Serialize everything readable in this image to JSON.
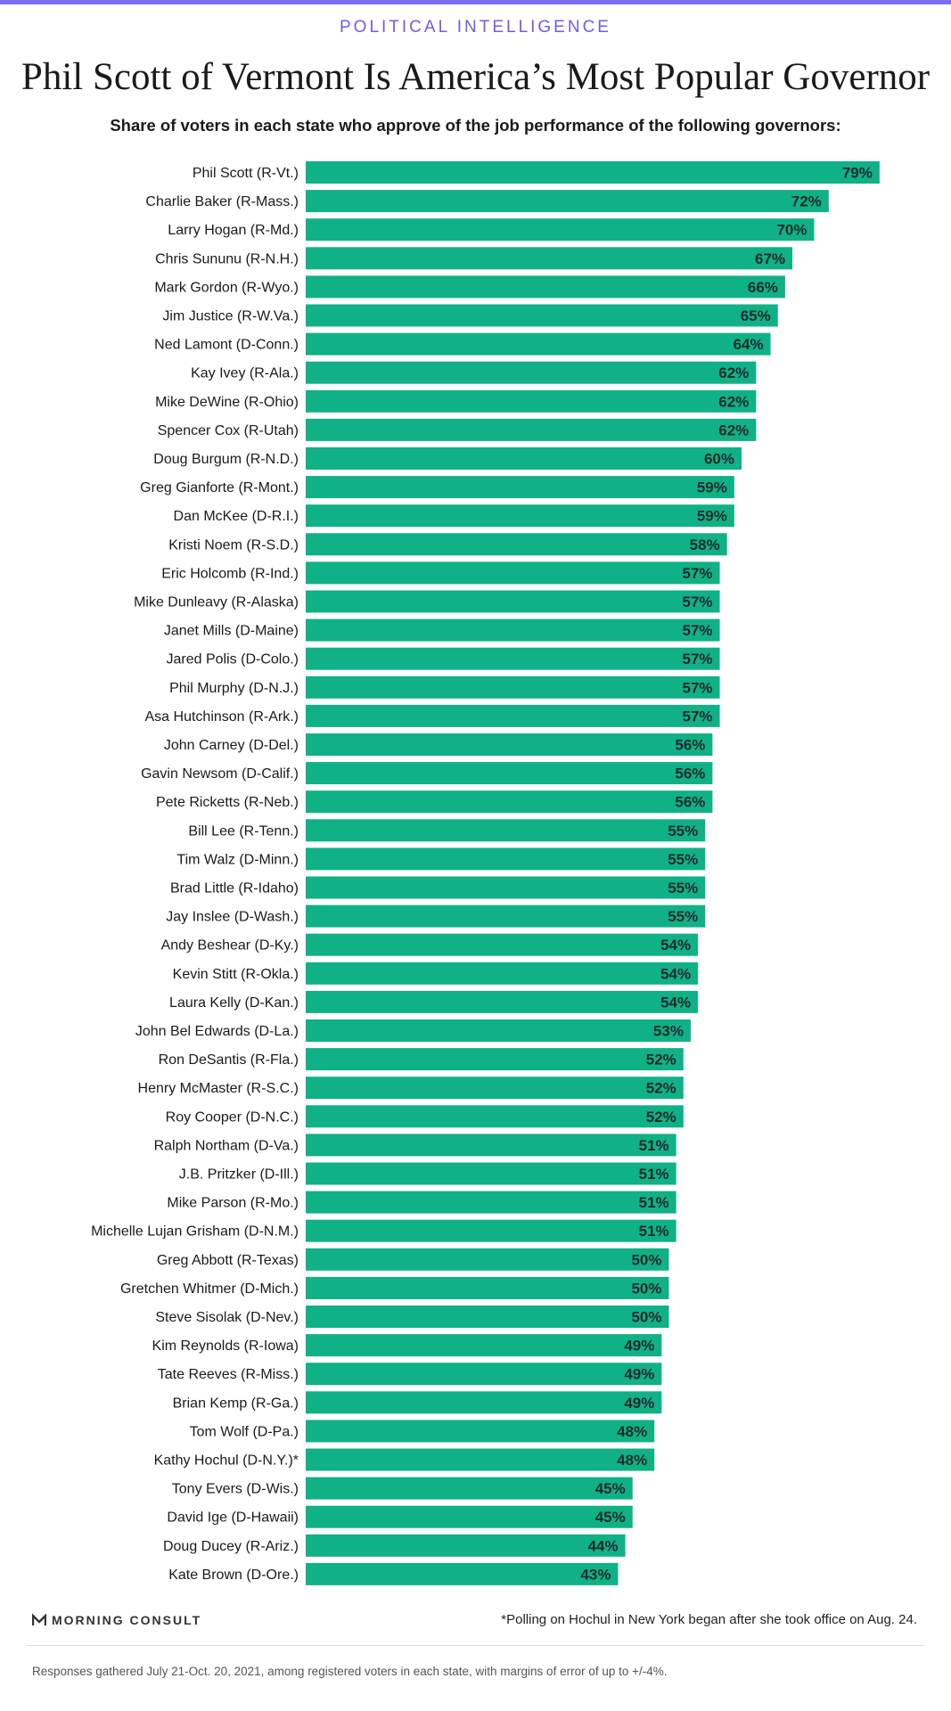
{
  "header": {
    "kicker": "POLITICAL INTELLIGENCE",
    "title": "Phil Scott of Vermont Is America’s Most Popular Governor",
    "subtitle": "Share of voters in each state who approve of the job performance of the following governors:"
  },
  "footer": {
    "brand": "MORNING CONSULT",
    "footnote": "*Polling on Hochul in New York began after she took office on Aug. 24.",
    "source": "Responses gathered July 21-Oct. 20, 2021, among registered voters in each state, with margins of error of up to +/-4%."
  },
  "colors": {
    "bar": "#10b186",
    "accent": "#7b6cf0"
  },
  "chart_data": {
    "type": "bar",
    "orientation": "horizontal",
    "title": "Phil Scott of Vermont Is America’s Most Popular Governor",
    "subtitle": "Share of voters in each state who approve of the job performance of the following governors:",
    "value_suffix": "%",
    "xlim": [
      0,
      80
    ],
    "grid": false,
    "categories": [
      "Phil Scott (R-Vt.)",
      "Charlie Baker (R-Mass.)",
      "Larry Hogan (R-Md.)",
      "Chris Sununu (R-N.H.)",
      "Mark Gordon (R-Wyo.)",
      "Jim Justice (R-W.Va.)",
      "Ned Lamont (D-Conn.)",
      "Kay Ivey (R-Ala.)",
      "Mike DeWine (R-Ohio)",
      "Spencer Cox (R-Utah)",
      "Doug Burgum (R-N.D.)",
      "Greg Gianforte (R-Mont.)",
      "Dan McKee (D-R.I.)",
      "Kristi Noem (R-S.D.)",
      "Eric Holcomb (R-Ind.)",
      "Mike Dunleavy (R-Alaska)",
      "Janet Mills (D-Maine)",
      "Jared Polis (D-Colo.)",
      "Phil Murphy (D-N.J.)",
      "Asa Hutchinson (R-Ark.)",
      "John Carney (D-Del.)",
      "Gavin Newsom (D-Calif.)",
      "Pete Ricketts (R-Neb.)",
      "Bill Lee (R-Tenn.)",
      "Tim Walz (D-Minn.)",
      "Brad Little (R-Idaho)",
      "Jay Inslee (D-Wash.)",
      "Andy Beshear (D-Ky.)",
      "Kevin Stitt (R-Okla.)",
      "Laura Kelly (D-Kan.)",
      "John Bel Edwards (D-La.)",
      "Ron DeSantis (R-Fla.)",
      "Henry McMaster (R-S.C.)",
      "Roy Cooper (D-N.C.)",
      "Ralph Northam (D-Va.)",
      "J.B. Pritzker (D-Ill.)",
      "Mike Parson (R-Mo.)",
      "Michelle Lujan Grisham (D-N.M.)",
      "Greg Abbott (R-Texas)",
      "Gretchen Whitmer (D-Mich.)",
      "Steve Sisolak (D-Nev.)",
      "Kim Reynolds (R-Iowa)",
      "Tate Reeves (R-Miss.)",
      "Brian Kemp (R-Ga.)",
      "Tom Wolf (D-Pa.)",
      "Kathy Hochul (D-N.Y.)*",
      "Tony Evers (D-Wis.)",
      "David Ige (D-Hawaii)",
      "Doug Ducey (R-Ariz.)",
      "Kate Brown (D-Ore.)"
    ],
    "values": [
      79,
      72,
      70,
      67,
      66,
      65,
      64,
      62,
      62,
      62,
      60,
      59,
      59,
      58,
      57,
      57,
      57,
      57,
      57,
      57,
      56,
      56,
      56,
      55,
      55,
      55,
      55,
      54,
      54,
      54,
      53,
      52,
      52,
      52,
      51,
      51,
      51,
      51,
      50,
      50,
      50,
      49,
      49,
      49,
      48,
      48,
      45,
      45,
      44,
      43
    ]
  }
}
